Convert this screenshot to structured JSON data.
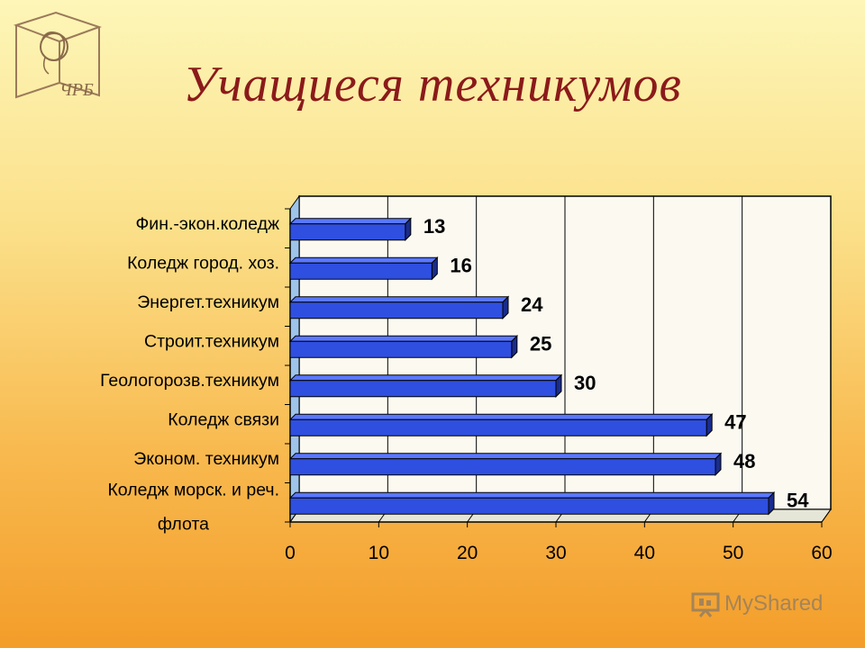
{
  "slide": {
    "title": "Учащиеся техникумов",
    "logo_text": "ЧРБ",
    "watermark": "MyShared"
  },
  "colors": {
    "bar_front": "#2f4fe0",
    "bar_top": "#5a78ff",
    "bar_side": "#1a2c8c",
    "title": "#8b1a1a",
    "plot_back": "#fbf9f0"
  },
  "chart_data": {
    "type": "bar",
    "orientation": "horizontal",
    "title": "",
    "xlabel": "",
    "ylabel": "",
    "categories": [
      "Фин.-экон.коледж",
      "Коледж город. хоз.",
      "Энергет.техникум",
      "Строит.техникум",
      "Геологорозв.техникум",
      "Коледж связи",
      "Эконом. техникум",
      "Коледж морск. и реч. флота"
    ],
    "values": [
      13,
      16,
      24,
      25,
      30,
      47,
      48,
      54
    ],
    "data_labels": [
      "13",
      "16",
      "24",
      "25",
      "30",
      "47",
      "48",
      "54"
    ],
    "xlim": [
      0,
      60
    ],
    "x_ticks": [
      "0",
      "10",
      "20",
      "30",
      "40",
      "50",
      "60"
    ],
    "grid": true,
    "legend": "none"
  }
}
